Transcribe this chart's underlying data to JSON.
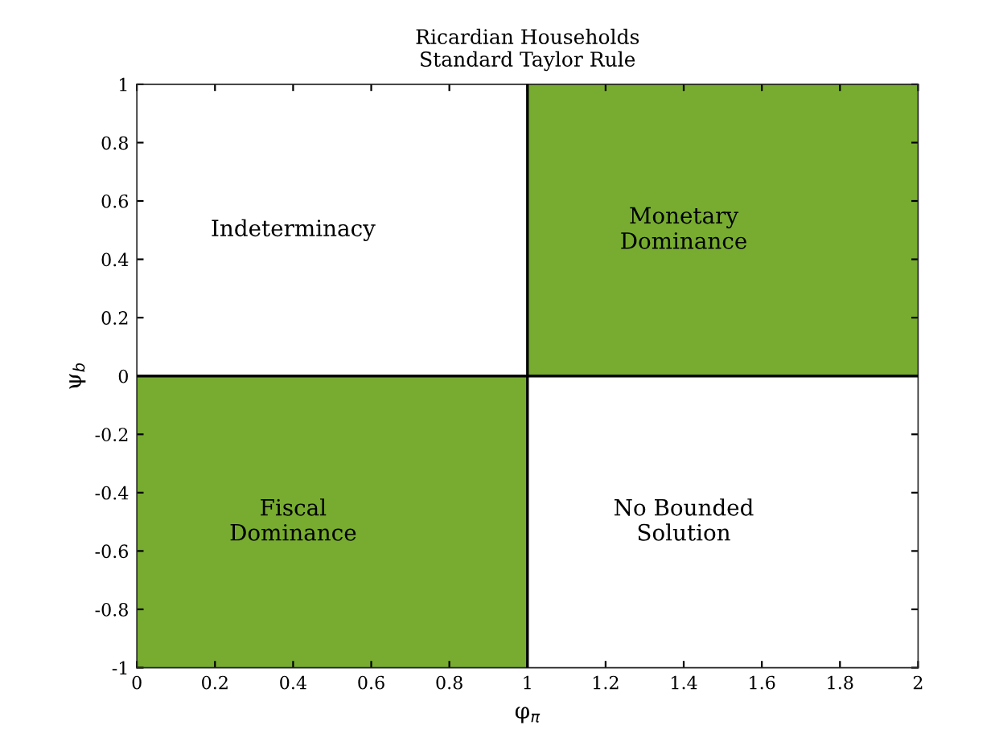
{
  "chart_data": {
    "type": "bar",
    "title": "Ricardian Households\nStandard Taylor Rule",
    "x": [
      0.5,
      1.5
    ],
    "values": [
      1,
      1
    ],
    "base": [
      -1,
      0
    ],
    "color": "#77ac30",
    "xlabel": "φ$_{π}$",
    "ylabel": "ψ$_{b}$",
    "xlim": [
      0,
      2
    ],
    "ylim": [
      -1,
      1
    ],
    "xticks": [
      0,
      0.2,
      0.4,
      0.6,
      0.8,
      1,
      1.2,
      1.4,
      1.6,
      1.8,
      2
    ],
    "yticks": [
      -1,
      -0.8,
      -0.6,
      -0.4,
      -0.2,
      0,
      0.2,
      0.4,
      0.6,
      0.8,
      1
    ],
    "ref_lines": [
      {
        "axis": "x",
        "value": 1,
        "color": "#000000"
      },
      {
        "axis": "y",
        "value": 0,
        "color": "#000000"
      }
    ],
    "annotations": [
      "Indeterminacy",
      "Monetary\nDominance",
      "Fiscal\nDominance",
      "No Bounded\nSolution"
    ],
    "grid": false,
    "legend": false
  }
}
